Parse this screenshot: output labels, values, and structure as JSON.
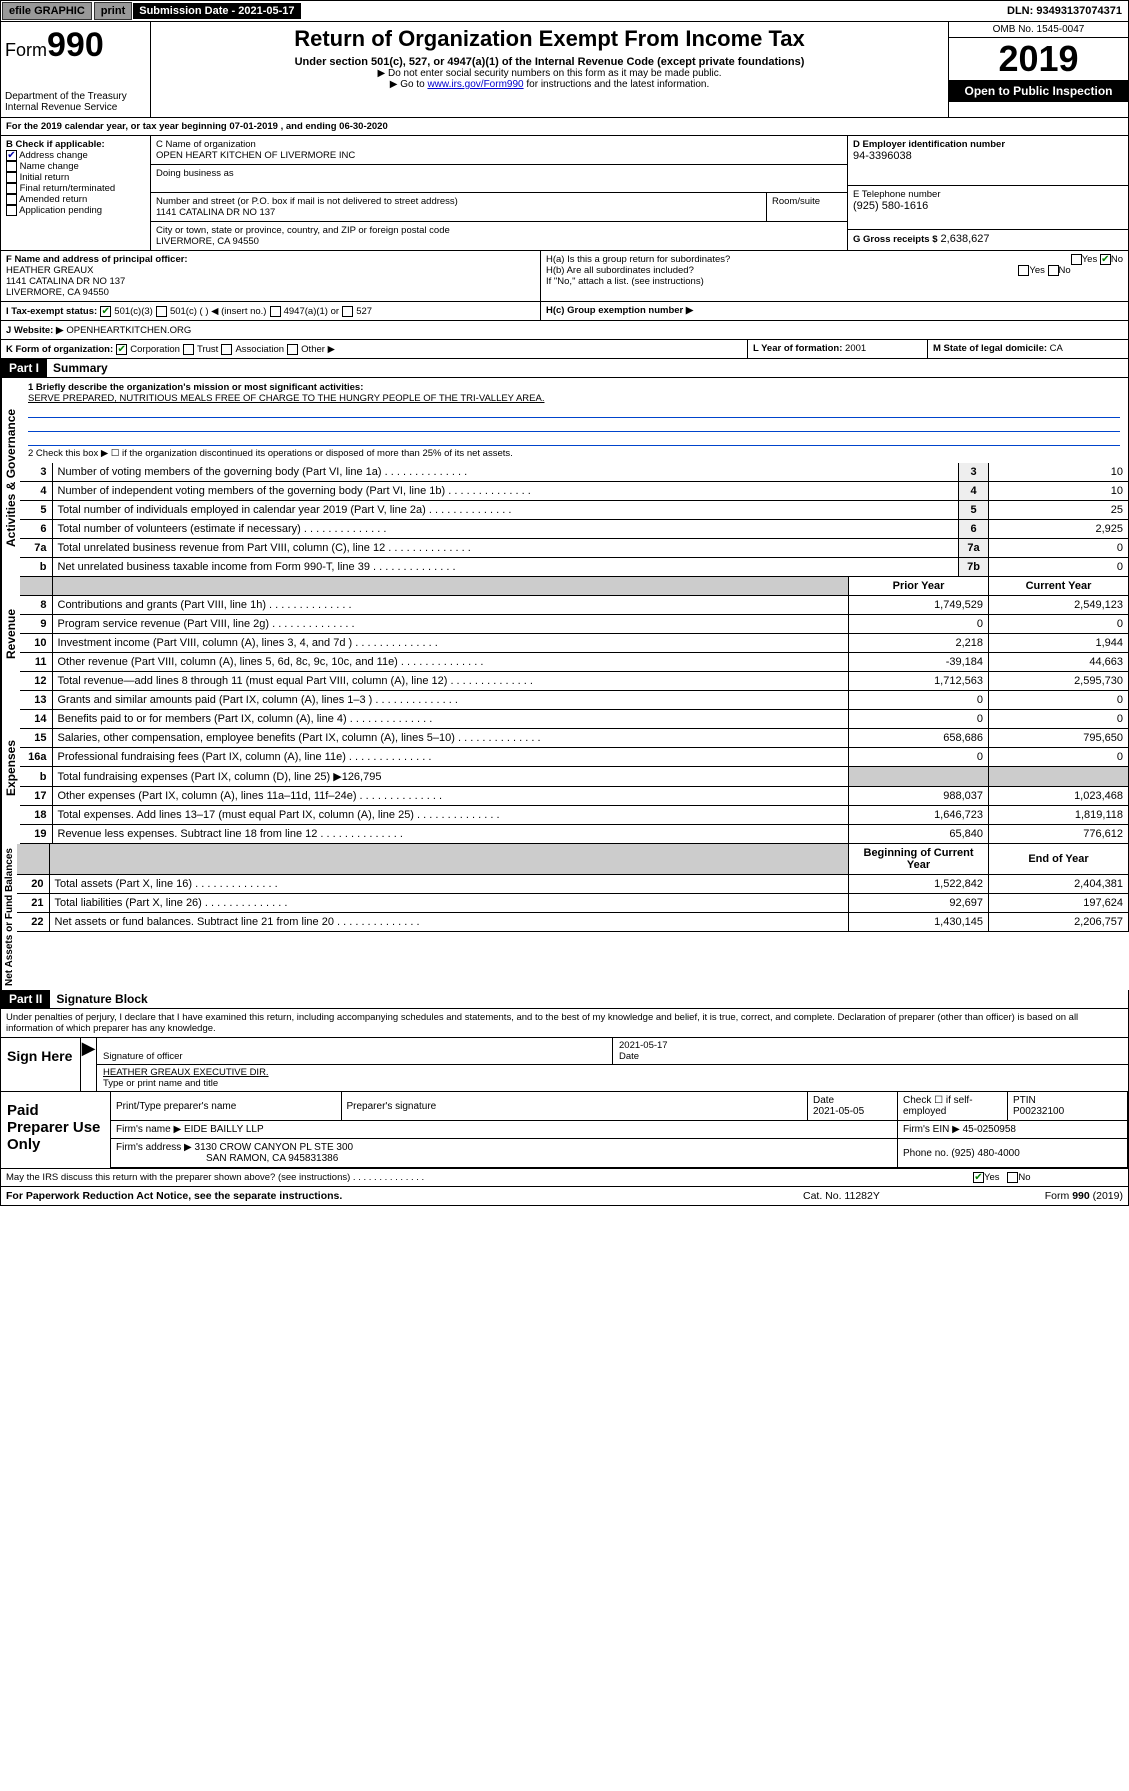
{
  "topbar": {
    "efile": "efile GRAPHIC",
    "print": "print",
    "sub_label": "Submission Date - 2021-05-17",
    "dln": "DLN: 93493137074371"
  },
  "header": {
    "form_prefix": "Form",
    "form_no": "990",
    "title": "Return of Organization Exempt From Income Tax",
    "subtitle": "Under section 501(c), 527, or 4947(a)(1) of the Internal Revenue Code (except private foundations)",
    "note1": "▶ Do not enter social security numbers on this form as it may be made public.",
    "note2a": "▶ Go to ",
    "note2_link": "www.irs.gov/Form990",
    "note2b": " for instructions and the latest information.",
    "dept": "Department of the Treasury\nInternal Revenue Service",
    "omb": "OMB No. 1545-0047",
    "year": "2019",
    "open": "Open to Public Inspection"
  },
  "periodA": "For the 2019 calendar year, or tax year beginning 07-01-2019    , and ending 06-30-2020",
  "boxB": {
    "label": "B Check if applicable:",
    "items": [
      "Address change",
      "Name change",
      "Initial return",
      "Final return/terminated",
      "Amended return",
      "Application pending"
    ],
    "checked": [
      true,
      false,
      false,
      false,
      false,
      false
    ]
  },
  "boxC": {
    "label": "C Name of organization",
    "org": "OPEN HEART KITCHEN OF LIVERMORE INC",
    "dba": "Doing business as",
    "addr_label": "Number and street (or P.O. box if mail is not delivered to street address)",
    "room": "Room/suite",
    "addr": "1141 CATALINA DR NO 137",
    "city_label": "City or town, state or province, country, and ZIP or foreign postal code",
    "city": "LIVERMORE, CA  94550"
  },
  "boxD": {
    "label": "D Employer identification number",
    "ein": "94-3396038"
  },
  "boxE": {
    "label": "E Telephone number",
    "phone": "(925) 580-1616"
  },
  "boxG": {
    "label": "G Gross receipts $",
    "amount": "2,638,627"
  },
  "boxF": {
    "label": "F Name and address of principal officer:",
    "name": "HEATHER GREAUX",
    "addr": "1141 CATALINA DR NO 137",
    "city": "LIVERMORE, CA  94550"
  },
  "boxH": {
    "ha": "H(a)  Is this a group return for subordinates?",
    "hb": "H(b)  Are all subordinates included?",
    "hb_note": "If \"No,\" attach a list. (see instructions)",
    "hc": "H(c)  Group exemption number ▶",
    "yes": "Yes",
    "no": "No"
  },
  "boxI": {
    "label": "I    Tax-exempt status:",
    "opts": [
      "501(c)(3)",
      "501(c) (   ) ◀ (insert no.)",
      "4947(a)(1) or",
      "527"
    ]
  },
  "boxJ": {
    "label": "J   Website: ▶",
    "site": "OPENHEARTKITCHEN.ORG"
  },
  "boxK": {
    "label": "K Form of organization:",
    "opts": [
      "Corporation",
      "Trust",
      "Association",
      "Other ▶"
    ]
  },
  "boxL": {
    "label": "L Year of formation:",
    "val": "2001"
  },
  "boxM": {
    "label": "M State of legal domicile:",
    "val": "CA"
  },
  "part1": {
    "tag": "Part I",
    "title": "Summary"
  },
  "summary": {
    "q1": "1  Briefly describe the organization's mission or most significant activities:",
    "mission": "SERVE PREPARED, NUTRITIOUS MEALS FREE OF CHARGE TO THE HUNGRY PEOPLE OF THE TRI-VALLEY AREA.",
    "q2": "2   Check this box ▶ ☐  if the organization discontinued its operations or disposed of more than 25% of its net assets."
  },
  "side": {
    "gov": "Activities & Governance",
    "rev": "Revenue",
    "exp": "Expenses",
    "net": "Net Assets or Fund Balances"
  },
  "gov_rows": [
    {
      "n": "3",
      "t": "Number of voting members of the governing body (Part VI, line 1a)",
      "b": "3",
      "v": "10"
    },
    {
      "n": "4",
      "t": "Number of independent voting members of the governing body (Part VI, line 1b)",
      "b": "4",
      "v": "10"
    },
    {
      "n": "5",
      "t": "Total number of individuals employed in calendar year 2019 (Part V, line 2a)",
      "b": "5",
      "v": "25"
    },
    {
      "n": "6",
      "t": "Total number of volunteers (estimate if necessary)",
      "b": "6",
      "v": "2,925"
    },
    {
      "n": "7a",
      "t": "Total unrelated business revenue from Part VIII, column (C), line 12",
      "b": "7a",
      "v": "0"
    },
    {
      "n": "b",
      "t": "Net unrelated business taxable income from Form 990-T, line 39",
      "b": "7b",
      "v": "0"
    }
  ],
  "col_hdr": {
    "py": "Prior Year",
    "cy": "Current Year"
  },
  "rev_rows": [
    {
      "n": "8",
      "t": "Contributions and grants (Part VIII, line 1h)",
      "py": "1,749,529",
      "cy": "2,549,123"
    },
    {
      "n": "9",
      "t": "Program service revenue (Part VIII, line 2g)",
      "py": "0",
      "cy": "0"
    },
    {
      "n": "10",
      "t": "Investment income (Part VIII, column (A), lines 3, 4, and 7d )",
      "py": "2,218",
      "cy": "1,944"
    },
    {
      "n": "11",
      "t": "Other revenue (Part VIII, column (A), lines 5, 6d, 8c, 9c, 10c, and 11e)",
      "py": "-39,184",
      "cy": "44,663"
    },
    {
      "n": "12",
      "t": "Total revenue—add lines 8 through 11 (must equal Part VIII, column (A), line 12)",
      "py": "1,712,563",
      "cy": "2,595,730"
    }
  ],
  "exp_rows": [
    {
      "n": "13",
      "t": "Grants and similar amounts paid (Part IX, column (A), lines 1–3 )",
      "py": "0",
      "cy": "0"
    },
    {
      "n": "14",
      "t": "Benefits paid to or for members (Part IX, column (A), line 4)",
      "py": "0",
      "cy": "0"
    },
    {
      "n": "15",
      "t": "Salaries, other compensation, employee benefits (Part IX, column (A), lines 5–10)",
      "py": "658,686",
      "cy": "795,650"
    },
    {
      "n": "16a",
      "t": "Professional fundraising fees (Part IX, column (A), line 11e)",
      "py": "0",
      "cy": "0"
    },
    {
      "n": "b",
      "t": "Total fundraising expenses (Part IX, column (D), line 25) ▶126,795",
      "py": "",
      "cy": "",
      "shade": true
    },
    {
      "n": "17",
      "t": "Other expenses (Part IX, column (A), lines 11a–11d, 11f–24e)",
      "py": "988,037",
      "cy": "1,023,468"
    },
    {
      "n": "18",
      "t": "Total expenses. Add lines 13–17 (must equal Part IX, column (A), line 25)",
      "py": "1,646,723",
      "cy": "1,819,118"
    },
    {
      "n": "19",
      "t": "Revenue less expenses. Subtract line 18 from line 12",
      "py": "65,840",
      "cy": "776,612"
    }
  ],
  "net_hdr": {
    "py": "Beginning of Current Year",
    "cy": "End of Year"
  },
  "net_rows": [
    {
      "n": "20",
      "t": "Total assets (Part X, line 16)",
      "py": "1,522,842",
      "cy": "2,404,381"
    },
    {
      "n": "21",
      "t": "Total liabilities (Part X, line 26)",
      "py": "92,697",
      "cy": "197,624"
    },
    {
      "n": "22",
      "t": "Net assets or fund balances. Subtract line 21 from line 20",
      "py": "1,430,145",
      "cy": "2,206,757"
    }
  ],
  "part2": {
    "tag": "Part II",
    "title": "Signature Block"
  },
  "penalty": "Under penalties of perjury, I declare that I have examined this return, including accompanying schedules and statements, and to the best of my knowledge and belief, it is true, correct, and complete. Declaration of preparer (other than officer) is based on all information of which preparer has any knowledge.",
  "sign": {
    "here": "Sign Here",
    "sig_off": "Signature of officer",
    "date": "2021-05-17",
    "date_l": "Date",
    "name": "HEATHER GREAUX  EXECUTIVE DIR.",
    "name_l": "Type or print name and title"
  },
  "paid": {
    "left": "Paid Preparer Use Only",
    "h1": "Print/Type preparer's name",
    "h2": "Preparer's signature",
    "h3": "Date",
    "h3v": "2021-05-05",
    "h4a": "Check ☐ if self-employed",
    "h5": "PTIN",
    "h5v": "P00232100",
    "firm_l": "Firm's name     ▶",
    "firm": "EIDE BAILLY LLP",
    "ein_l": "Firm's EIN ▶",
    "ein": "45-0250958",
    "addr_l": "Firm's address ▶",
    "addr": "3130 CROW CANYON PL STE 300",
    "addr2": "SAN RAMON, CA  945831386",
    "phone_l": "Phone no.",
    "phone": "(925) 480-4000"
  },
  "discuss": "May the IRS discuss this return with the preparer shown above? (see instructions)",
  "foot": {
    "pra": "For Paperwork Reduction Act Notice, see the separate instructions.",
    "cat": "Cat. No. 11282Y",
    "form": "Form 990 (2019)"
  },
  "colors": {
    "link": "#0000cc",
    "check": "#008000"
  }
}
